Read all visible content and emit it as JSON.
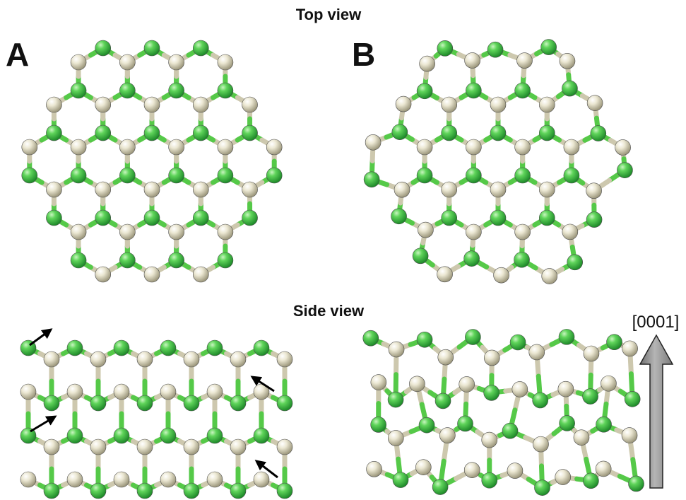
{
  "labels": {
    "top_view": "Top view",
    "side_view": "Side view",
    "panel_a": "A",
    "panel_b": "B",
    "direction": "[0001]"
  },
  "colors": {
    "green_atom": "#3fbf4a",
    "gray_atom": "#e2ddc6",
    "arrow_fill": "#8c8c8c",
    "motion_arrow": "#000000"
  }
}
